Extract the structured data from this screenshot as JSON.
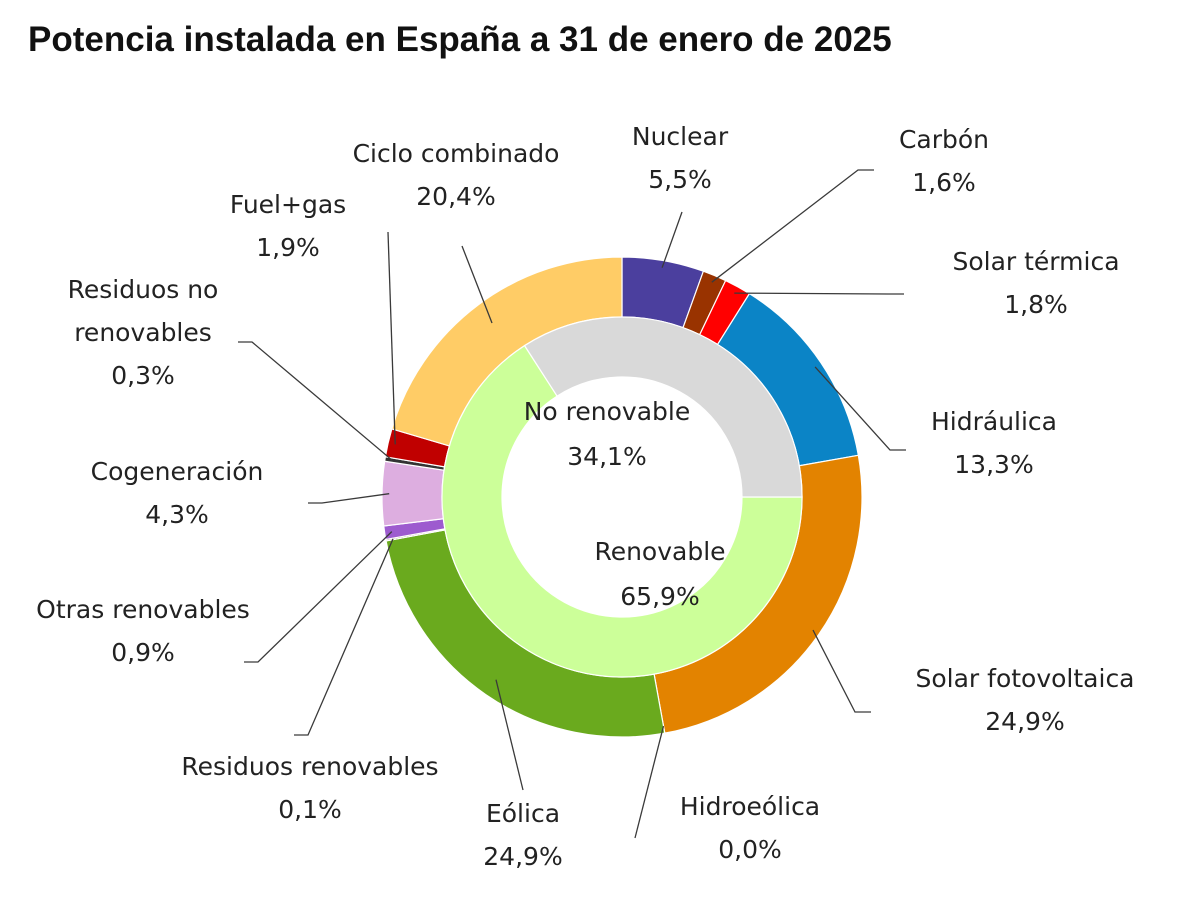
{
  "chart_data": {
    "type": "donut",
    "title": "Potencia instalada en España a 31 de enero de 2025",
    "inner_ring": [
      {
        "label": "No renovable",
        "value_label": "34,1%",
        "value": 34.1,
        "color": "#d9d9d9"
      },
      {
        "label": "Renovable",
        "value_label": "65,9%",
        "value": 65.9,
        "color": "#ccff99"
      }
    ],
    "outer_ring": [
      {
        "label": "Nuclear",
        "value_label": "5,5%",
        "value": 5.5,
        "color": "#4b3f9e"
      },
      {
        "label": "Carbón",
        "value_label": "1,6%",
        "value": 1.6,
        "color": "#993300"
      },
      {
        "label": "Solar térmica",
        "value_label": "1,8%",
        "value": 1.8,
        "color": "#ff0000"
      },
      {
        "label": "Hidráulica",
        "value_label": "13,3%",
        "value": 13.3,
        "color": "#0b84c6"
      },
      {
        "label": "Solar fotovoltaica",
        "value_label": "24,9%",
        "value": 24.9,
        "color": "#e38300"
      },
      {
        "label": "Hidroeólica",
        "value_label": "0,0%",
        "value": 0.0,
        "color": "#6aaa1e"
      },
      {
        "label": "Eólica",
        "value_label": "24,9%",
        "value": 24.9,
        "color": "#6aaa1e"
      },
      {
        "label": "Residuos renovables",
        "value_label": "0,1%",
        "value": 0.1,
        "color": "#7a5c2e"
      },
      {
        "label": "Otras renovables",
        "value_label": "0,9%",
        "value": 0.9,
        "color": "#9d5bcf"
      },
      {
        "label": "Cogeneración",
        "value_label": "4,3%",
        "value": 4.3,
        "color": "#ddaee0"
      },
      {
        "label": "Residuos no renovables",
        "value_label": "0,3%",
        "value": 0.3,
        "color": "#333333"
      },
      {
        "label": "Fuel+gas",
        "value_label": "1,9%",
        "value": 1.9,
        "color": "#c00000"
      },
      {
        "label": "Ciclo combinado",
        "value_label": "20,4%",
        "value": 20.4,
        "color": "#ffcc66"
      }
    ]
  }
}
